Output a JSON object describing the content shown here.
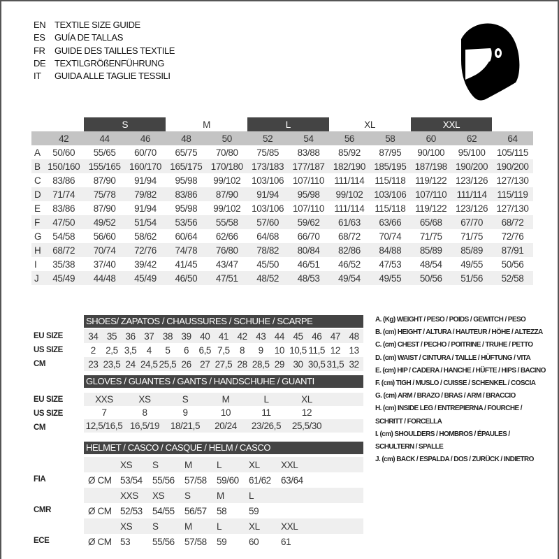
{
  "titles": [
    {
      "code": "EN",
      "text": "TEXTILE SIZE GUIDE"
    },
    {
      "code": "ES",
      "text": "GUÍA DE TALLAS"
    },
    {
      "code": "FR",
      "text": "GUIDE DES TAILLES TEXTILE"
    },
    {
      "code": "DE",
      "text": "TEXTILGRÖßENFÜHRUNG"
    },
    {
      "code": "IT",
      "text": "GUIDA ALLE TAGLIE TESSILI"
    }
  ],
  "icon": "helmet-icon",
  "textile": {
    "bands": [
      "S",
      "M",
      "L",
      "XL",
      "XXL"
    ],
    "sizes": [
      "42",
      "44",
      "46",
      "48",
      "50",
      "52",
      "54",
      "56",
      "58",
      "60",
      "62",
      "64"
    ],
    "rows": [
      {
        "label": "A",
        "values": [
          "50/60",
          "55/65",
          "60/70",
          "65/75",
          "70/80",
          "75/85",
          "83/88",
          "85/92",
          "87/95",
          "90/100",
          "95/100",
          "105/115"
        ]
      },
      {
        "label": "B",
        "values": [
          "150/160",
          "155/165",
          "160/170",
          "165/175",
          "170/180",
          "173/183",
          "177/187",
          "182/190",
          "185/195",
          "187/198",
          "190/200",
          "190/200"
        ]
      },
      {
        "label": "C",
        "values": [
          "83/86",
          "87/90",
          "91/94",
          "95/98",
          "99/102",
          "103/106",
          "107/110",
          "111/114",
          "115/118",
          "119/122",
          "123/126",
          "127/130"
        ]
      },
      {
        "label": "D",
        "values": [
          "71/74",
          "75/78",
          "79/82",
          "83/86",
          "87/90",
          "91/94",
          "95/98",
          "99/102",
          "103/106",
          "107/110",
          "111/114",
          "115/119"
        ]
      },
      {
        "label": "E",
        "values": [
          "83/86",
          "87/90",
          "91/94",
          "95/98",
          "99/102",
          "103/106",
          "107/110",
          "111/114",
          "115/118",
          "119/122",
          "123/126",
          "127/130"
        ]
      },
      {
        "label": "F",
        "values": [
          "47/50",
          "49/52",
          "51/54",
          "53/56",
          "55/58",
          "57/60",
          "59/62",
          "61/63",
          "63/66",
          "65/68",
          "67/70",
          "68/72"
        ]
      },
      {
        "label": "G",
        "values": [
          "54/58",
          "56/60",
          "58/62",
          "60/64",
          "62/66",
          "64/68",
          "66/70",
          "68/72",
          "70/74",
          "71/75",
          "71/75",
          "72/76"
        ]
      },
      {
        "label": "H",
        "values": [
          "68/72",
          "70/74",
          "72/76",
          "74/78",
          "76/80",
          "78/82",
          "80/84",
          "82/86",
          "84/88",
          "85/89",
          "85/89",
          "87/91"
        ]
      },
      {
        "label": "I",
        "values": [
          "35/38",
          "37/40",
          "39/42",
          "41/45",
          "43/47",
          "45/50",
          "46/51",
          "46/52",
          "47/53",
          "48/54",
          "49/55",
          "50/56"
        ]
      },
      {
        "label": "J",
        "values": [
          "45/49",
          "44/48",
          "45/49",
          "46/50",
          "47/51",
          "48/52",
          "48/53",
          "49/54",
          "49/55",
          "50/56",
          "51/56",
          "52/58"
        ]
      }
    ]
  },
  "shoes": {
    "title": "SHOES/ ZAPATOS / CHAUSSURES / SCHUHE / SCARPE",
    "rows": [
      {
        "label": "EU SIZE",
        "values": [
          "34",
          "35",
          "36",
          "37",
          "38",
          "39",
          "40",
          "41",
          "42",
          "43",
          "44",
          "45",
          "46",
          "47",
          "48"
        ]
      },
      {
        "label": "US SIZE",
        "values": [
          "2",
          "2,5",
          "3,5",
          "4",
          "5",
          "6",
          "6,5",
          "7,5",
          "8",
          "9",
          "10",
          "10,5",
          "11,5",
          "12",
          "13"
        ]
      },
      {
        "label": "CM",
        "values": [
          "23",
          "23,5",
          "24",
          "24,5",
          "25,5",
          "26",
          "27",
          "27,5",
          "28",
          "28,5",
          "29",
          "30",
          "30,5",
          "31,5",
          "32"
        ]
      }
    ]
  },
  "gloves": {
    "title": "GLOVES / GUANTES / GANTS / HANDSCHUHE / GUANTI",
    "rows": [
      {
        "label": "EU SIZE",
        "values": [
          "XXS",
          "XS",
          "S",
          "M",
          "L",
          "XL"
        ]
      },
      {
        "label": "US SIZE",
        "values": [
          "7",
          "8",
          "9",
          "10",
          "11",
          "12"
        ]
      },
      {
        "label": "CM",
        "values": [
          "12,5/16,5",
          "16,5/19",
          "18/21,5",
          "20/24",
          "23/26,5",
          "25,5/30"
        ]
      }
    ]
  },
  "helmet": {
    "title": "HELMET / CASCO / CASQUE / HELM / CASCO",
    "unit": "Ø CM",
    "groups": [
      {
        "label": "FIA",
        "sizes": [
          "XS",
          "S",
          "M",
          "L",
          "XL",
          "XXL"
        ],
        "values": [
          "53/54",
          "55/56",
          "57/58",
          "59/60",
          "61/62",
          "63/64"
        ]
      },
      {
        "label": "CMR",
        "sizes": [
          "XXS",
          "XS",
          "S",
          "M",
          "L",
          ""
        ],
        "values": [
          "52/53",
          "54/55",
          "56/57",
          "58",
          "59",
          ""
        ]
      },
      {
        "label": "ECE",
        "sizes": [
          "XS",
          "S",
          "M",
          "L",
          "XL",
          "XXL"
        ],
        "values": [
          "53",
          "55/56",
          "57/58",
          "59",
          "60",
          "61"
        ]
      }
    ]
  },
  "legend": [
    "A. (Kg) WEIGHT / PESO / POIDS / GEWITCH / PESO",
    "B. (cm) HEIGHT / ALTURA / HAUTEUR / HÖHE / ALTEZZA",
    "C. (cm) CHEST / PECHO / POITRINE / TRUHE / PETTO",
    "D. (cm) WAIST / CINTURA / TAILLE / HÜFTUNG / VITA",
    "E. (cm) HIP / CADERA / HANCHE / HÜFTE / HIPS /  BACINO",
    "F.  (cm) TIGH / MUSLO / CUISSE / SCHENKEL / COSCIA",
    "G. (cm) ARM  / BRAZO / BRAS / ARM / BRACCIO",
    "H. (cm) INSIDE LEG / ENTREPIERNA / FOURCHE /",
    "SCHRITT / FORCELLA",
    "I.  (cm) SHOULDERS / HOMBROS / ÉPAULES /",
    "SCHULTERN / SPALLE",
    "J. (cm) BACK / ESPALDA / DOS / ZURÜCK / INDIETRO"
  ]
}
